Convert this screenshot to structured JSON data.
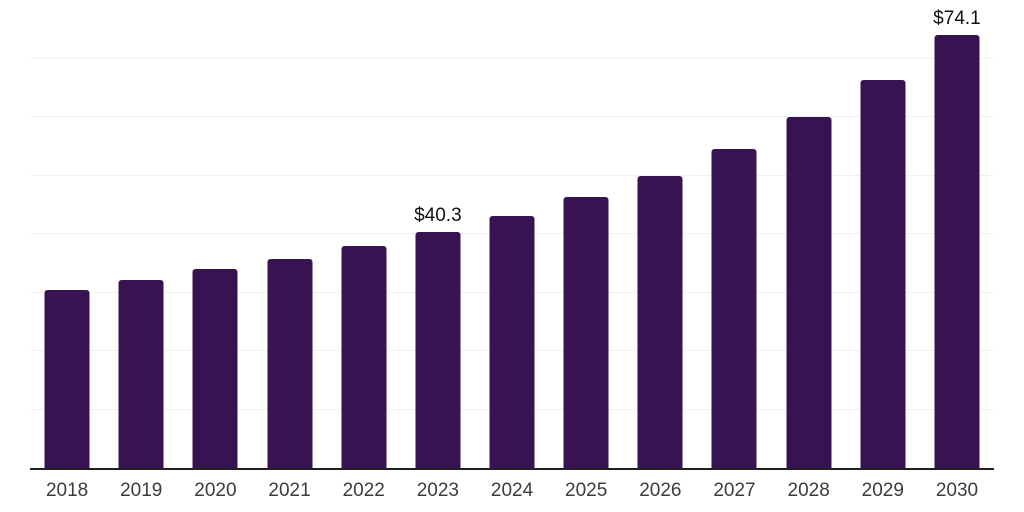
{
  "chart_data": {
    "type": "bar",
    "title": "",
    "xlabel": "",
    "ylabel": "",
    "categories": [
      "2018",
      "2019",
      "2020",
      "2021",
      "2022",
      "2023",
      "2024",
      "2025",
      "2026",
      "2027",
      "2028",
      "2029",
      "2030"
    ],
    "values": [
      30.4,
      32.1,
      34.0,
      35.8,
      37.9,
      40.3,
      43.0,
      46.3,
      50.0,
      54.5,
      60.0,
      66.3,
      74.1
    ],
    "data_labels": [
      "",
      "",
      "",
      "",
      "",
      "$40.3",
      "",
      "",
      "",
      "",
      "",
      "",
      "$74.1"
    ],
    "ylim": [
      0,
      80
    ],
    "gridline_step": 10,
    "grid": true,
    "legend": false,
    "y_tick_labels_visible": false,
    "colors": {
      "bar": "#381352",
      "grid": "#f0f0f0",
      "axis_line": "#1f1f1f",
      "x_tick_label": "#3c3c3c",
      "data_label": "#111111",
      "background": "#ffffff"
    }
  }
}
